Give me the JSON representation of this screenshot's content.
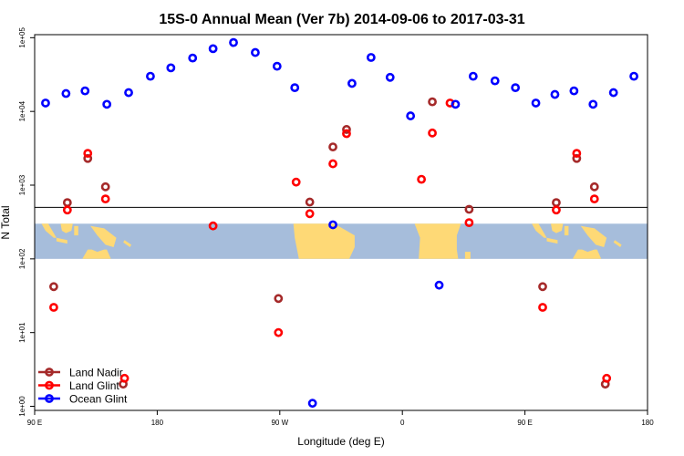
{
  "chart_data": {
    "type": "scatter",
    "title": "15S-0 Annual Mean (Ver 7b)   2014-09-06 to 2017-03-31",
    "xlabel": "Longitude (deg E)",
    "ylabel": "N Total",
    "x_scale": "linear",
    "y_scale": "log",
    "xlim": [
      90,
      540
    ],
    "ylim": [
      0.88,
      110000
    ],
    "x_ticks": [
      {
        "value": 90,
        "label": "90 E"
      },
      {
        "value": 180,
        "label": "180"
      },
      {
        "value": 270,
        "label": "90 W"
      },
      {
        "value": 360,
        "label": "0"
      },
      {
        "value": 450,
        "label": "90 E"
      },
      {
        "value": 540,
        "label": "180"
      }
    ],
    "y_ticks": [
      {
        "value": 1,
        "label": "1e+00"
      },
      {
        "value": 10,
        "label": "1e+01"
      },
      {
        "value": 100,
        "label": "1e+02"
      },
      {
        "value": 1000,
        "label": "1e+03"
      },
      {
        "value": 10000,
        "label": "1e+04"
      },
      {
        "value": 100000,
        "label": "1e+05"
      }
    ],
    "reference_line_y": 500,
    "map_band": {
      "lon_range": [
        90,
        540
      ],
      "y_range": [
        100,
        300
      ]
    },
    "legend": {
      "position": "bottom-left"
    },
    "series": [
      {
        "name": "Land Nadir",
        "color": "#a52a2a",
        "points": [
          {
            "x": 104,
            "y": 42
          },
          {
            "x": 114,
            "y": 580
          },
          {
            "x": 129,
            "y": 2300
          },
          {
            "x": 142,
            "y": 950
          },
          {
            "x": 155,
            "y": 2.0
          },
          {
            "x": 269,
            "y": 29
          },
          {
            "x": 292,
            "y": 590
          },
          {
            "x": 309,
            "y": 3300
          },
          {
            "x": 319,
            "y": 5700
          },
          {
            "x": 382,
            "y": 13500
          },
          {
            "x": 409,
            "y": 470
          },
          {
            "x": 463,
            "y": 42
          },
          {
            "x": 473,
            "y": 580
          },
          {
            "x": 488,
            "y": 2300
          },
          {
            "x": 501,
            "y": 950
          },
          {
            "x": 509,
            "y": 2.0
          }
        ]
      },
      {
        "name": "Land Glint",
        "color": "#ff0000",
        "points": [
          {
            "x": 104,
            "y": 22
          },
          {
            "x": 114,
            "y": 460
          },
          {
            "x": 129,
            "y": 2700
          },
          {
            "x": 142,
            "y": 650
          },
          {
            "x": 156,
            "y": 2.4
          },
          {
            "x": 221,
            "y": 280
          },
          {
            "x": 269,
            "y": 10
          },
          {
            "x": 282,
            "y": 1100
          },
          {
            "x": 292,
            "y": 410
          },
          {
            "x": 309,
            "y": 1950
          },
          {
            "x": 319,
            "y": 5000
          },
          {
            "x": 374,
            "y": 1200
          },
          {
            "x": 382,
            "y": 5100
          },
          {
            "x": 395,
            "y": 13000
          },
          {
            "x": 409,
            "y": 310
          },
          {
            "x": 463,
            "y": 22
          },
          {
            "x": 473,
            "y": 460
          },
          {
            "x": 488,
            "y": 2700
          },
          {
            "x": 501,
            "y": 650
          },
          {
            "x": 510,
            "y": 2.4
          }
        ]
      },
      {
        "name": "Ocean Glint",
        "color": "#0000ff",
        "points": [
          {
            "x": 98,
            "y": 13000
          },
          {
            "x": 113,
            "y": 17500
          },
          {
            "x": 127,
            "y": 19000
          },
          {
            "x": 143,
            "y": 12500
          },
          {
            "x": 159,
            "y": 18000
          },
          {
            "x": 175,
            "y": 30000
          },
          {
            "x": 190,
            "y": 39000
          },
          {
            "x": 206,
            "y": 53000
          },
          {
            "x": 221,
            "y": 71000
          },
          {
            "x": 236,
            "y": 86000
          },
          {
            "x": 252,
            "y": 63000
          },
          {
            "x": 268,
            "y": 41000
          },
          {
            "x": 281,
            "y": 21000
          },
          {
            "x": 294,
            "y": 1.1
          },
          {
            "x": 309,
            "y": 290
          },
          {
            "x": 323,
            "y": 24000
          },
          {
            "x": 337,
            "y": 54000
          },
          {
            "x": 351,
            "y": 29000
          },
          {
            "x": 366,
            "y": 8700
          },
          {
            "x": 387,
            "y": 44
          },
          {
            "x": 399,
            "y": 12500
          },
          {
            "x": 412,
            "y": 30000
          },
          {
            "x": 428,
            "y": 26000
          },
          {
            "x": 443,
            "y": 21000
          },
          {
            "x": 458,
            "y": 13000
          },
          {
            "x": 472,
            "y": 17000
          },
          {
            "x": 486,
            "y": 19000
          },
          {
            "x": 500,
            "y": 12500
          },
          {
            "x": 515,
            "y": 18000
          },
          {
            "x": 530,
            "y": 30000
          }
        ]
      }
    ]
  }
}
